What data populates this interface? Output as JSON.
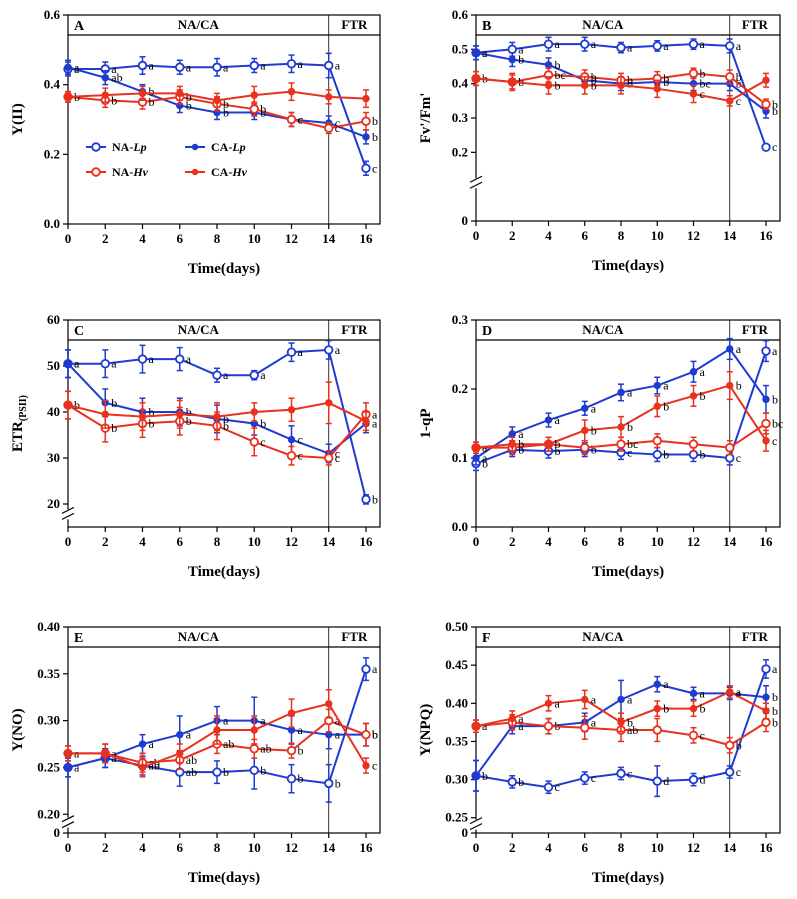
{
  "colors": {
    "NA-Lp": "#1f3bd1",
    "CA-Lp": "#1f3bd1",
    "NA-Hv": "#e8321e",
    "CA-Hv": "#e8321e"
  },
  "legend": [
    {
      "key": "NA-Lp",
      "prefix": "NA-",
      "species": "Lp",
      "marker": "open"
    },
    {
      "key": "CA-Lp",
      "prefix": "CA-",
      "species": "Lp",
      "marker": "filled"
    },
    {
      "key": "NA-Hv",
      "prefix": "NA-",
      "species": "Hv",
      "marker": "open"
    },
    {
      "key": "CA-Hv",
      "prefix": "CA-",
      "species": "Hv",
      "marker": "filled"
    }
  ],
  "chart_data": [
    {
      "type": "line",
      "panel": "A",
      "title": "",
      "ylabel": "Y(II)",
      "xlabel": "Time(days)",
      "header_left": "NA/CA",
      "header_right": "FTR",
      "x": [
        0,
        2,
        4,
        6,
        8,
        10,
        12,
        14,
        16
      ],
      "ylim": [
        0,
        0.6
      ],
      "yticks": [
        "0.0",
        "0.2",
        "0.4",
        "0.6"
      ],
      "ytick_values": [
        0,
        0.2,
        0.4,
        0.6
      ],
      "axis_break": false,
      "series": [
        {
          "name": "NA-Lp",
          "values": [
            0.445,
            0.445,
            0.455,
            0.45,
            0.45,
            0.455,
            0.46,
            0.455,
            0.16
          ],
          "err": [
            0.02,
            0.02,
            0.025,
            0.02,
            0.025,
            0.02,
            0.025,
            0.035,
            0.02
          ],
          "labels": [
            "a",
            "a",
            "a",
            "a",
            "a",
            "a",
            "a",
            "a",
            "c"
          ]
        },
        {
          "name": "CA-Lp",
          "values": [
            0.45,
            0.42,
            0.38,
            0.34,
            0.32,
            0.32,
            0.3,
            0.29,
            0.25
          ],
          "err": [
            0.02,
            0.02,
            0.02,
            0.02,
            0.02,
            0.02,
            0.02,
            0.02,
            0.02
          ],
          "labels": [
            "a",
            "ab",
            "b",
            "b",
            "b",
            "b",
            "c",
            "c",
            "b"
          ]
        },
        {
          "name": "NA-Hv",
          "values": [
            0.365,
            0.355,
            0.35,
            0.365,
            0.345,
            0.33,
            0.3,
            0.275,
            0.295
          ],
          "err": [
            0.015,
            0.02,
            0.02,
            0.02,
            0.02,
            0.02,
            0.02,
            0.015,
            0.025
          ],
          "labels": [
            "b",
            "b",
            "b",
            "b",
            "b",
            "b",
            "c",
            "c",
            "b"
          ]
        },
        {
          "name": "CA-Hv",
          "values": [
            0.365,
            0.37,
            0.375,
            0.375,
            0.355,
            0.37,
            0.38,
            0.365,
            0.36
          ],
          "err": [
            0.015,
            0.02,
            0.02,
            0.02,
            0.02,
            0.025,
            0.025,
            0.02,
            0.025
          ],
          "labels": [
            "",
            "",
            "",
            "",
            "",
            "",
            "",
            "",
            ""
          ]
        }
      ],
      "legend_in_panel": true
    },
    {
      "type": "line",
      "panel": "B",
      "title": "",
      "ylabel": "Fv'/Fm'",
      "xlabel": "Time(days)",
      "header_left": "NA/CA",
      "header_right": "FTR",
      "x": [
        0,
        2,
        4,
        6,
        8,
        10,
        12,
        14,
        16
      ],
      "ylim": [
        0,
        0.6
      ],
      "yticks": [
        "0",
        "0.2",
        "0.3",
        "0.4",
        "0.5",
        "0.6"
      ],
      "ytick_values": [
        0,
        0.2,
        0.3,
        0.4,
        0.5,
        0.6
      ],
      "axis_break": true,
      "break_low": 0.2,
      "series": [
        {
          "name": "NA-Lp",
          "values": [
            0.49,
            0.5,
            0.515,
            0.515,
            0.505,
            0.51,
            0.515,
            0.51,
            0.215
          ],
          "err": [
            0.02,
            0.02,
            0.02,
            0.02,
            0.015,
            0.015,
            0.015,
            0.02,
            0.008
          ],
          "labels": [
            "a",
            "a",
            "a",
            "a",
            "a",
            "a",
            "a",
            "a",
            "c"
          ]
        },
        {
          "name": "CA-Lp",
          "values": [
            0.49,
            0.47,
            0.455,
            0.41,
            0.4,
            0.405,
            0.4,
            0.4,
            0.32
          ],
          "err": [
            0.02,
            0.02,
            0.02,
            0.02,
            0.02,
            0.02,
            0.02,
            0.02,
            0.02
          ],
          "labels": [
            "a",
            "b",
            "b",
            "b",
            "b",
            "b",
            "bc",
            "b",
            "b"
          ]
        },
        {
          "name": "NA-Hv",
          "values": [
            0.415,
            0.405,
            0.425,
            0.42,
            0.41,
            0.415,
            0.43,
            0.42,
            0.34
          ],
          "err": [
            0.02,
            0.02,
            0.02,
            0.02,
            0.02,
            0.02,
            0.015,
            0.02,
            0.015
          ],
          "labels": [
            "b",
            "b",
            "bc",
            "b",
            "b",
            "b",
            "b",
            "b",
            "b"
          ]
        },
        {
          "name": "CA-Hv",
          "values": [
            0.415,
            0.405,
            0.395,
            0.395,
            0.395,
            0.385,
            0.37,
            0.35,
            0.41
          ],
          "err": [
            0.02,
            0.025,
            0.025,
            0.025,
            0.025,
            0.025,
            0.025,
            0.015,
            0.02
          ],
          "labels": [
            "",
            "",
            "b",
            "b",
            "",
            "",
            "c",
            "c",
            ""
          ]
        }
      ]
    },
    {
      "type": "line",
      "panel": "C",
      "title": "",
      "ylabel": "ETR",
      "ylabel_sub": "(PSII)",
      "xlabel": "Time(days)",
      "header_left": "NA/CA",
      "header_right": "FTR",
      "x": [
        0,
        2,
        4,
        6,
        8,
        10,
        12,
        14,
        16
      ],
      "ylim": [
        15,
        60
      ],
      "yticks": [
        "20",
        "30",
        "40",
        "50",
        "60"
      ],
      "ytick_values": [
        20,
        30,
        40,
        50,
        60
      ],
      "axis_break": true,
      "break_low": 20,
      "series": [
        {
          "name": "NA-Lp",
          "values": [
            50.5,
            50.5,
            51.5,
            51.5,
            48,
            48,
            53,
            53.5,
            21
          ],
          "err": [
            3,
            3,
            3,
            2.5,
            1.5,
            1,
            2,
            2,
            1
          ],
          "labels": [
            "a",
            "a",
            "a",
            "a",
            "a",
            "a",
            "a",
            "a",
            "b"
          ]
        },
        {
          "name": "CA-Lp",
          "values": [
            50.5,
            42,
            40,
            40,
            38.5,
            37.5,
            34,
            31,
            37.5
          ],
          "err": [
            3,
            3,
            3,
            3,
            3,
            2.5,
            3,
            2,
            2
          ],
          "labels": [
            "a",
            "b",
            "b",
            "b",
            "b",
            "b",
            "c",
            "c",
            "a"
          ]
        },
        {
          "name": "NA-Hv",
          "values": [
            41.5,
            36.5,
            37.5,
            38,
            37,
            33.5,
            30.5,
            30,
            39.5
          ],
          "err": [
            3,
            3,
            3,
            3,
            3,
            3,
            2,
            1.5,
            2.5
          ],
          "labels": [
            "b",
            "b",
            "b",
            "b",
            "b",
            "c",
            "c",
            "c",
            "a"
          ]
        },
        {
          "name": "CA-Hv",
          "values": [
            41.5,
            39.5,
            39,
            39.5,
            39,
            40,
            40.5,
            42,
            38
          ],
          "err": [
            3,
            3,
            3,
            3,
            3,
            2,
            2.5,
            4.5,
            2
          ],
          "labels": [
            "",
            "",
            "",
            "",
            "",
            "",
            "",
            "",
            ""
          ]
        }
      ]
    },
    {
      "type": "line",
      "panel": "D",
      "title": "",
      "ylabel": "1-qP",
      "xlabel": "Time(days)",
      "header_left": "NA/CA",
      "header_right": "FTR",
      "x": [
        0,
        2,
        4,
        6,
        8,
        10,
        12,
        14,
        16
      ],
      "ylim": [
        0,
        0.3
      ],
      "yticks": [
        "0.0",
        "0.1",
        "0.2",
        "0.3"
      ],
      "ytick_values": [
        0,
        0.1,
        0.2,
        0.3
      ],
      "axis_break": false,
      "series": [
        {
          "name": "NA-Lp",
          "values": [
            0.092,
            0.112,
            0.11,
            0.112,
            0.108,
            0.105,
            0.105,
            0.1,
            0.255
          ],
          "err": [
            0.01,
            0.01,
            0.01,
            0.01,
            0.01,
            0.01,
            0.01,
            0.01,
            0.015
          ],
          "labels": [
            "b",
            "b",
            "b",
            "b",
            "c",
            "b",
            "b",
            "c",
            "a"
          ]
        },
        {
          "name": "CA-Lp",
          "values": [
            0.1,
            0.135,
            0.155,
            0.172,
            0.195,
            0.205,
            0.225,
            0.258,
            0.185
          ],
          "err": [
            0.01,
            0.01,
            0.01,
            0.01,
            0.012,
            0.012,
            0.015,
            0.015,
            0.02
          ],
          "labels": [
            "a",
            "a",
            "a",
            "a",
            "a",
            "a",
            "a",
            "a",
            "b"
          ]
        },
        {
          "name": "NA-Hv",
          "values": [
            0.115,
            0.115,
            0.12,
            0.115,
            0.12,
            0.125,
            0.12,
            0.115,
            0.15
          ],
          "err": [
            0.008,
            0.01,
            0.01,
            0.01,
            0.01,
            0.01,
            0.01,
            0.01,
            0.015
          ],
          "labels": [
            "a",
            "",
            "",
            "",
            "bc",
            "",
            "",
            "",
            "bc"
          ]
        },
        {
          "name": "CA-Hv",
          "values": [
            0.115,
            0.12,
            0.12,
            0.14,
            0.145,
            0.175,
            0.19,
            0.205,
            0.125
          ],
          "err": [
            0.008,
            0.01,
            0.01,
            0.015,
            0.015,
            0.015,
            0.015,
            0.02,
            0.015
          ],
          "labels": [
            "",
            "b",
            "b",
            "b",
            "b",
            "b",
            "b",
            "b",
            "c"
          ]
        }
      ]
    },
    {
      "type": "line",
      "panel": "E",
      "title": "",
      "ylabel": "Y(NO)",
      "xlabel": "Time(days)",
      "header_left": "NA/CA",
      "header_right": "FTR",
      "x": [
        0,
        2,
        4,
        6,
        8,
        10,
        12,
        14,
        16
      ],
      "ylim": [
        0.18,
        0.4
      ],
      "yticks": [
        "0",
        "0.20",
        "0.25",
        "0.30",
        "0.35",
        "0.40"
      ],
      "ytick_values": [
        0.18,
        0.2,
        0.25,
        0.3,
        0.35,
        0.4
      ],
      "axis_break": true,
      "break_low": 0.2,
      "series": [
        {
          "name": "NA-Lp",
          "values": [
            0.25,
            0.26,
            0.252,
            0.245,
            0.245,
            0.247,
            0.238,
            0.233,
            0.355
          ],
          "err": [
            0.01,
            0.01,
            0.01,
            0.015,
            0.012,
            0.02,
            0.015,
            0.02,
            0.012
          ],
          "labels": [
            "a",
            "a",
            "ab",
            "ab",
            "b",
            "b",
            "b",
            "b",
            "a"
          ]
        },
        {
          "name": "CA-Lp",
          "values": [
            0.25,
            0.26,
            0.275,
            0.285,
            0.3,
            0.3,
            0.29,
            0.285,
            0.285
          ],
          "err": [
            0.01,
            0.01,
            0.01,
            0.02,
            0.015,
            0.025,
            0.015,
            0.015,
            0.012
          ],
          "labels": [
            "",
            "",
            "a",
            "a",
            "a",
            "a",
            "a",
            "a",
            "b"
          ]
        },
        {
          "name": "NA-Hv",
          "values": [
            0.265,
            0.265,
            0.255,
            0.258,
            0.275,
            0.27,
            0.268,
            0.3,
            0.285
          ],
          "err": [
            0.008,
            0.01,
            0.01,
            0.01,
            0.01,
            0.01,
            0.008,
            0.012,
            0.012
          ],
          "labels": [
            "a",
            "a",
            "ab",
            "ab",
            "ab",
            "ab",
            "b",
            "a",
            "b"
          ]
        },
        {
          "name": "CA-Hv",
          "values": [
            0.265,
            0.265,
            0.25,
            0.265,
            0.29,
            0.29,
            0.308,
            0.318,
            0.252
          ],
          "err": [
            0.008,
            0.01,
            0.01,
            0.01,
            0.015,
            0.015,
            0.015,
            0.015,
            0.008
          ],
          "labels": [
            "",
            "",
            "",
            "",
            "",
            "",
            "",
            "",
            "c"
          ]
        }
      ]
    },
    {
      "type": "line",
      "panel": "F",
      "title": "",
      "ylabel": "Y(NPQ)",
      "xlabel": "Time(days)",
      "header_left": "NA/CA",
      "header_right": "FTR",
      "x": [
        0,
        2,
        4,
        6,
        8,
        10,
        12,
        14,
        16
      ],
      "ylim": [
        0.23,
        0.5
      ],
      "yticks": [
        "0",
        "0.25",
        "0.30",
        "0.35",
        "0.40",
        "0.45",
        "0.50"
      ],
      "ytick_values": [
        0.23,
        0.25,
        0.3,
        0.35,
        0.4,
        0.45,
        0.5
      ],
      "axis_break": true,
      "break_low": 0.25,
      "series": [
        {
          "name": "NA-Lp",
          "values": [
            0.305,
            0.297,
            0.29,
            0.302,
            0.308,
            0.298,
            0.3,
            0.31,
            0.445
          ],
          "err": [
            0.02,
            0.008,
            0.008,
            0.008,
            0.008,
            0.02,
            0.008,
            0.008,
            0.012
          ],
          "labels": [
            "b",
            "b",
            "c",
            "c",
            "c",
            "d",
            "d",
            "c",
            "a"
          ]
        },
        {
          "name": "CA-Lp",
          "values": [
            0.305,
            0.37,
            0.37,
            0.375,
            0.405,
            0.425,
            0.413,
            0.413,
            0.408
          ],
          "err": [
            0.02,
            0.01,
            0.01,
            0.012,
            0.025,
            0.01,
            0.008,
            0.008,
            0.015
          ],
          "labels": [
            "",
            "a",
            "b",
            "a",
            "a",
            "a",
            "a",
            "a",
            "b"
          ]
        },
        {
          "name": "NA-Hv",
          "values": [
            0.37,
            0.375,
            0.37,
            0.368,
            0.365,
            0.365,
            0.358,
            0.345,
            0.375
          ],
          "err": [
            0.008,
            0.01,
            0.01,
            0.015,
            0.015,
            0.015,
            0.01,
            0.01,
            0.012
          ],
          "labels": [
            "a",
            "",
            "",
            "",
            "ab",
            "",
            "c",
            "b",
            "b"
          ]
        },
        {
          "name": "CA-Hv",
          "values": [
            0.37,
            0.38,
            0.4,
            0.405,
            0.375,
            0.393,
            0.393,
            0.415,
            0.39
          ],
          "err": [
            0.008,
            0.01,
            0.01,
            0.012,
            0.012,
            0.01,
            0.01,
            0.008,
            0.01
          ],
          "labels": [
            "",
            "a",
            "a",
            "a",
            "b",
            "b",
            "b",
            "a",
            "b"
          ]
        }
      ]
    }
  ]
}
